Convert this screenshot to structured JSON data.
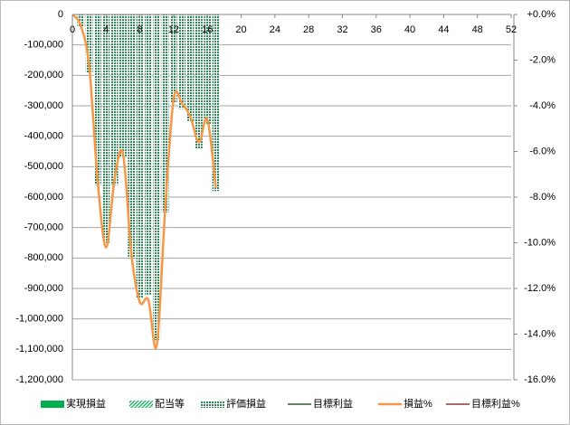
{
  "chart_data": {
    "type": "combo",
    "x": [
      0,
      1,
      2,
      3,
      4,
      5,
      6,
      7,
      8,
      9,
      10,
      11,
      12,
      13,
      14,
      15,
      16,
      17
    ],
    "xlim": [
      0,
      52
    ],
    "xticks": [
      0,
      4,
      8,
      12,
      16,
      20,
      24,
      28,
      32,
      36,
      40,
      44,
      48,
      52
    ],
    "ylim": [
      -1200000,
      0
    ],
    "yticks": [
      {
        "value": -1200000,
        "label": "-1,200,000"
      },
      {
        "value": -1100000,
        "label": "-1,100,000"
      },
      {
        "value": -1000000,
        "label": "-1,000,000"
      },
      {
        "value": -900000,
        "label": "-900,000"
      },
      {
        "value": -800000,
        "label": "-800,000"
      },
      {
        "value": -700000,
        "label": "-700,000"
      },
      {
        "value": -600000,
        "label": "-600,000"
      },
      {
        "value": -500000,
        "label": "-500,000"
      },
      {
        "value": -400000,
        "label": "-400,000"
      },
      {
        "value": -300000,
        "label": "-300,000"
      },
      {
        "value": -200000,
        "label": "-200,000"
      },
      {
        "value": -100000,
        "label": "-100,000"
      },
      0
    ],
    "y2lim": [
      -16,
      0
    ],
    "y2ticks": [
      {
        "value": -16,
        "label": "-16.0%"
      },
      {
        "value": -14,
        "label": "-14.0%"
      },
      {
        "value": -12,
        "label": "-12.0%"
      },
      {
        "value": -10,
        "label": "-10.0%"
      },
      {
        "value": -8,
        "label": "-8.0%"
      },
      {
        "value": -6,
        "label": "-6.0%"
      },
      {
        "value": -4,
        "label": "-4.0%"
      },
      {
        "value": -2,
        "label": "-2.0%"
      },
      {
        "value": 0,
        "label": "+0.0%"
      }
    ],
    "ytick_negative_color": "#ff0000",
    "y2tick_color": "#0000cc",
    "y2tick_zero_color": "#ff0000",
    "grid": true,
    "legend": "bottom",
    "series": [
      {
        "name": "実現損益",
        "type": "bar",
        "pattern": "solid",
        "color": "#00b050",
        "values": [
          null,
          null,
          null,
          null,
          null,
          null,
          null,
          null,
          null,
          null,
          null,
          null,
          null,
          null,
          null,
          null,
          null,
          null
        ]
      },
      {
        "name": "配当等",
        "type": "bar",
        "pattern": "diagonal",
        "color": "#00b050",
        "values": [
          null,
          null,
          null,
          null,
          null,
          null,
          null,
          null,
          null,
          null,
          null,
          null,
          null,
          null,
          null,
          null,
          null,
          null
        ]
      },
      {
        "name": "評価損益",
        "type": "bar",
        "pattern": "dotted",
        "color": "#2e8b57",
        "values": [
          null,
          -40000,
          -190000,
          -560000,
          -750000,
          -560000,
          -470000,
          -800000,
          -930000,
          -920000,
          -1070000,
          -650000,
          -290000,
          -310000,
          -350000,
          -440000,
          -360000,
          -580000
        ]
      },
      {
        "name": "目標利益",
        "type": "line",
        "color": "#2f5f2f",
        "values": [
          null,
          null,
          null,
          null,
          null,
          null,
          null,
          null,
          null,
          null,
          null,
          null,
          null,
          null,
          null,
          null,
          null,
          null
        ]
      },
      {
        "name": "損益%",
        "type": "line",
        "axis": "y2",
        "color": "#f79646",
        "values": [
          0,
          -0.5,
          -2.3,
          -7.3,
          -10.2,
          -7.2,
          -6.1,
          -10.5,
          -12.6,
          -12.5,
          -14.5,
          -8.5,
          -3.7,
          -3.9,
          -4.5,
          -5.6,
          -4.6,
          -7.6
        ]
      },
      {
        "name": "目標利益%",
        "type": "line",
        "axis": "y2",
        "color": "#943634",
        "values": [
          null,
          null,
          null,
          null,
          null,
          null,
          null,
          null,
          null,
          null,
          null,
          null,
          null,
          null,
          null,
          null,
          null,
          null
        ]
      }
    ]
  }
}
